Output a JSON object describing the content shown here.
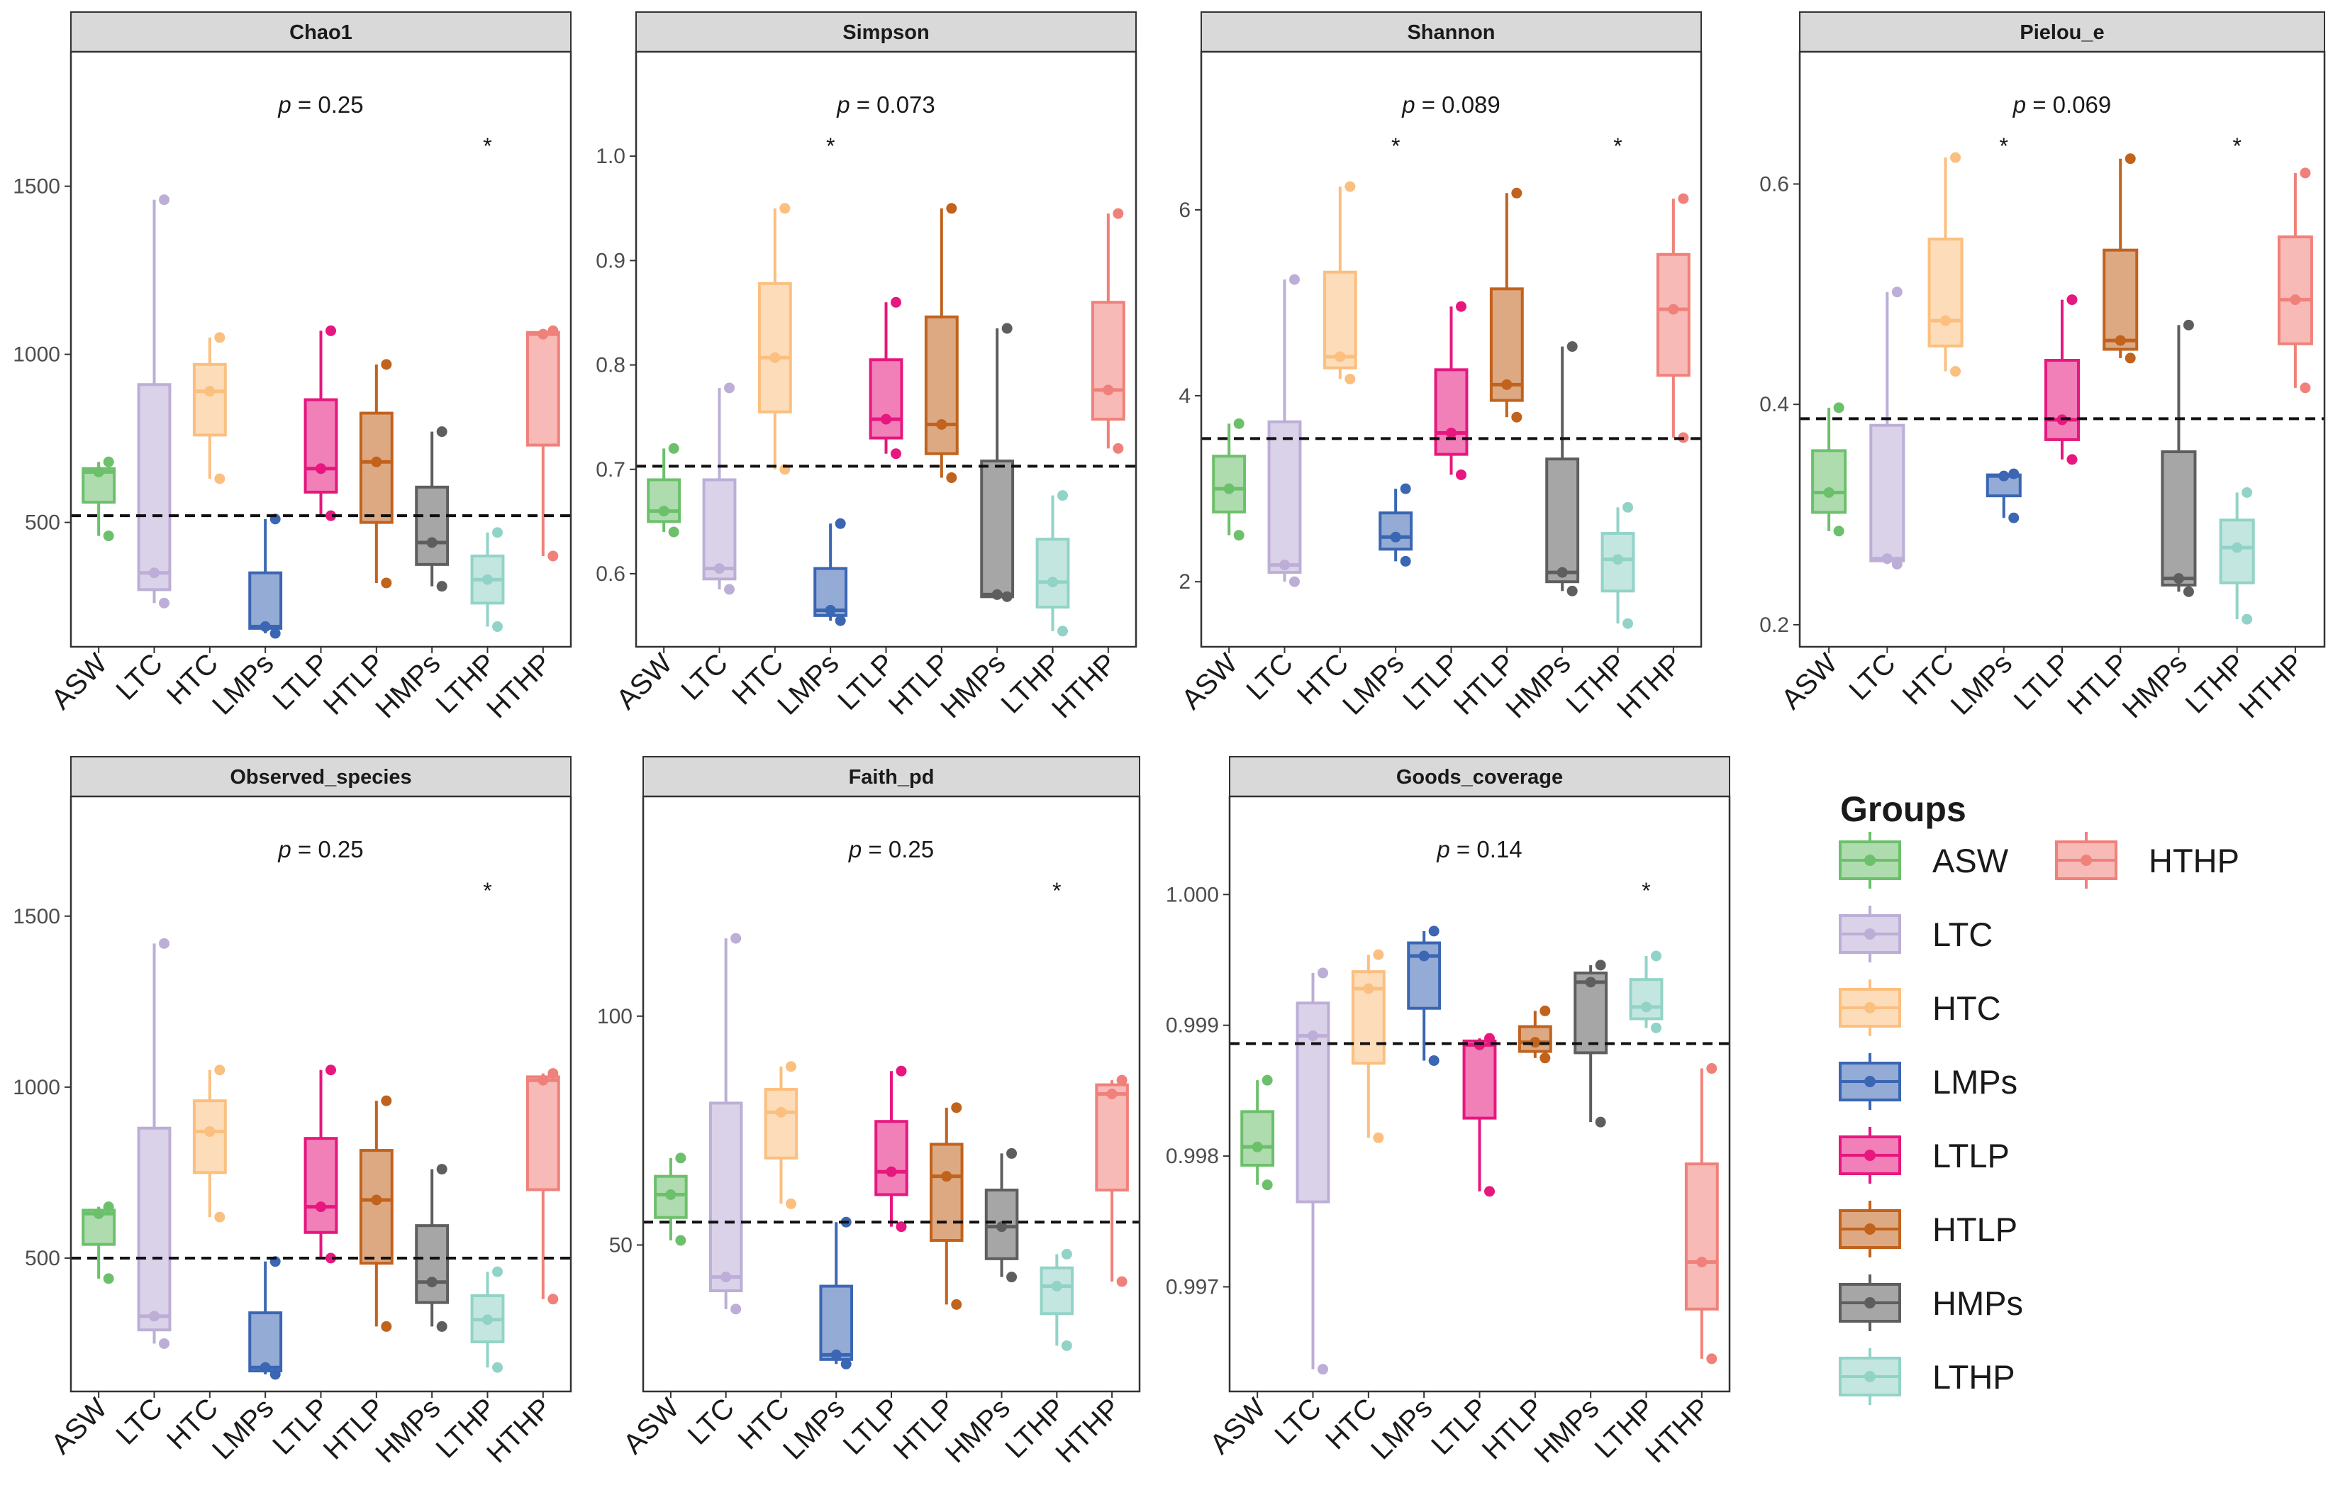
{
  "legend": {
    "title": "Groups",
    "items": [
      {
        "name": "ASW",
        "color": "#6cc06b"
      },
      {
        "name": "LTC",
        "color": "#bcaed6"
      },
      {
        "name": "HTC",
        "color": "#fbbf7f"
      },
      {
        "name": "LMPs",
        "color": "#3a66b3"
      },
      {
        "name": "LTLP",
        "color": "#e6177e"
      },
      {
        "name": "HTLP",
        "color": "#c1621d"
      },
      {
        "name": "HMPs",
        "color": "#5e5e5e"
      },
      {
        "name": "LTHP",
        "color": "#92d3c7"
      },
      {
        "name": "HTHP",
        "color": "#f0817a"
      }
    ]
  },
  "chart_data": [
    {
      "type": "boxplot",
      "title": "Chao1",
      "p_prefix": "p",
      "p_value": "= 0.25",
      "ylim": [
        130,
        1900
      ],
      "yticks": [
        500,
        1000,
        1500
      ],
      "ytick_labels": [
        "500",
        "1000",
        "1500"
      ],
      "mean_line": 520,
      "significance": [
        "LTHP"
      ],
      "categories": [
        "ASW",
        "LTC",
        "HTC",
        "LMPs",
        "LTLP",
        "HTLP",
        "HMPs",
        "LTHP",
        "HTHP"
      ],
      "boxes": [
        {
          "min": 460,
          "q1": 560,
          "median": 650,
          "q3": 660,
          "max": 680,
          "points": [
            680,
            650,
            460
          ]
        },
        {
          "min": 260,
          "q1": 300,
          "median": 350,
          "q3": 910,
          "max": 1460,
          "points": [
            1460,
            350,
            260
          ]
        },
        {
          "min": 630,
          "q1": 760,
          "median": 890,
          "q3": 970,
          "max": 1050,
          "points": [
            1050,
            890,
            630
          ]
        },
        {
          "min": 170,
          "q1": 185,
          "median": 190,
          "q3": 350,
          "max": 510,
          "points": [
            510,
            190,
            170
          ]
        },
        {
          "min": 520,
          "q1": 590,
          "median": 660,
          "q3": 865,
          "max": 1070,
          "points": [
            1070,
            660,
            520
          ]
        },
        {
          "min": 320,
          "q1": 500,
          "median": 680,
          "q3": 825,
          "max": 970,
          "points": [
            970,
            680,
            320
          ]
        },
        {
          "min": 310,
          "q1": 375,
          "median": 440,
          "q3": 605,
          "max": 770,
          "points": [
            770,
            440,
            310
          ]
        },
        {
          "min": 190,
          "q1": 260,
          "median": 330,
          "q3": 400,
          "max": 470,
          "points": [
            470,
            330,
            190
          ]
        },
        {
          "min": 400,
          "q1": 730,
          "median": 1060,
          "q3": 1065,
          "max": 1070,
          "points": [
            1070,
            1060,
            400
          ]
        }
      ]
    },
    {
      "type": "boxplot",
      "title": "Simpson",
      "p_prefix": "p",
      "p_value": "= 0.073",
      "ylim": [
        0.53,
        1.1
      ],
      "yticks": [
        0.6,
        0.7,
        0.8,
        0.9,
        1.0
      ],
      "ytick_labels": [
        "0.6",
        "0.7",
        "0.8",
        "0.9",
        "1.0"
      ],
      "mean_line": 0.703,
      "significance": [
        "LMPs"
      ],
      "categories": [
        "ASW",
        "LTC",
        "HTC",
        "LMPs",
        "LTLP",
        "HTLP",
        "HMPs",
        "LTHP",
        "HTHP"
      ],
      "boxes": [
        {
          "min": 0.64,
          "q1": 0.65,
          "median": 0.66,
          "q3": 0.69,
          "max": 0.72,
          "points": [
            0.72,
            0.66,
            0.64
          ]
        },
        {
          "min": 0.585,
          "q1": 0.595,
          "median": 0.605,
          "q3": 0.69,
          "max": 0.778,
          "points": [
            0.778,
            0.605,
            0.585
          ]
        },
        {
          "min": 0.7,
          "q1": 0.755,
          "median": 0.807,
          "q3": 0.878,
          "max": 0.95,
          "points": [
            0.95,
            0.807,
            0.7
          ]
        },
        {
          "min": 0.555,
          "q1": 0.56,
          "median": 0.565,
          "q3": 0.605,
          "max": 0.648,
          "points": [
            0.648,
            0.565,
            0.555
          ]
        },
        {
          "min": 0.715,
          "q1": 0.73,
          "median": 0.748,
          "q3": 0.805,
          "max": 0.86,
          "points": [
            0.86,
            0.748,
            0.715
          ]
        },
        {
          "min": 0.692,
          "q1": 0.715,
          "median": 0.743,
          "q3": 0.846,
          "max": 0.95,
          "points": [
            0.95,
            0.743,
            0.692
          ]
        },
        {
          "min": 0.578,
          "q1": 0.578,
          "median": 0.58,
          "q3": 0.708,
          "max": 0.835,
          "points": [
            0.835,
            0.58,
            0.578
          ]
        },
        {
          "min": 0.545,
          "q1": 0.568,
          "median": 0.592,
          "q3": 0.633,
          "max": 0.675,
          "points": [
            0.675,
            0.592,
            0.545
          ]
        },
        {
          "min": 0.72,
          "q1": 0.748,
          "median": 0.776,
          "q3": 0.86,
          "max": 0.945,
          "points": [
            0.945,
            0.776,
            0.72
          ]
        }
      ]
    },
    {
      "type": "boxplot",
      "title": "Shannon",
      "p_prefix": "p",
      "p_value": "= 0.089",
      "ylim": [
        1.3,
        7.7
      ],
      "yticks": [
        2,
        4,
        6
      ],
      "ytick_labels": [
        "2",
        "4",
        "6"
      ],
      "mean_line": 3.54,
      "significance": [
        "LMPs",
        "LTHP"
      ],
      "categories": [
        "ASW",
        "LTC",
        "HTC",
        "LMPs",
        "LTLP",
        "HTLP",
        "HMPs",
        "LTHP",
        "HTHP"
      ],
      "boxes": [
        {
          "min": 2.5,
          "q1": 2.75,
          "median": 3.0,
          "q3": 3.35,
          "max": 3.7,
          "points": [
            3.7,
            3.0,
            2.5
          ]
        },
        {
          "min": 2.0,
          "q1": 2.1,
          "median": 2.18,
          "q3": 3.72,
          "max": 5.25,
          "points": [
            5.25,
            2.18,
            2.0
          ]
        },
        {
          "min": 4.18,
          "q1": 4.3,
          "median": 4.42,
          "q3": 5.33,
          "max": 6.25,
          "points": [
            6.25,
            4.42,
            4.18
          ]
        },
        {
          "min": 2.22,
          "q1": 2.35,
          "median": 2.48,
          "q3": 2.74,
          "max": 3.0,
          "points": [
            3.0,
            2.48,
            2.22
          ]
        },
        {
          "min": 3.15,
          "q1": 3.37,
          "median": 3.6,
          "q3": 4.28,
          "max": 4.96,
          "points": [
            4.96,
            3.6,
            3.15
          ]
        },
        {
          "min": 3.77,
          "q1": 3.95,
          "median": 4.12,
          "q3": 5.15,
          "max": 6.18,
          "points": [
            6.18,
            4.12,
            3.77
          ]
        },
        {
          "min": 1.9,
          "q1": 2.0,
          "median": 2.1,
          "q3": 3.32,
          "max": 4.53,
          "points": [
            4.53,
            2.1,
            1.9
          ]
        },
        {
          "min": 1.55,
          "q1": 1.9,
          "median": 2.24,
          "q3": 2.52,
          "max": 2.8,
          "points": [
            2.8,
            2.24,
            1.55
          ]
        },
        {
          "min": 3.55,
          "q1": 4.22,
          "median": 4.93,
          "q3": 5.52,
          "max": 6.12,
          "points": [
            6.12,
            4.93,
            3.55
          ]
        }
      ]
    },
    {
      "type": "boxplot",
      "title": "Pielou_e",
      "p_prefix": "p",
      "p_value": "= 0.069",
      "ylim": [
        0.18,
        0.72
      ],
      "yticks": [
        0.2,
        0.4,
        0.6
      ],
      "ytick_labels": [
        "0.2",
        "0.4",
        "0.6"
      ],
      "mean_line": 0.387,
      "significance": [
        "LMPs",
        "LTHP"
      ],
      "categories": [
        "ASW",
        "LTC",
        "HTC",
        "LMPs",
        "LTLP",
        "HTLP",
        "HMPs",
        "LTHP",
        "HTHP"
      ],
      "boxes": [
        {
          "min": 0.285,
          "q1": 0.302,
          "median": 0.32,
          "q3": 0.358,
          "max": 0.397,
          "points": [
            0.397,
            0.32,
            0.285
          ]
        },
        {
          "min": 0.255,
          "q1": 0.258,
          "median": 0.26,
          "q3": 0.381,
          "max": 0.502,
          "points": [
            0.502,
            0.26,
            0.255
          ]
        },
        {
          "min": 0.43,
          "q1": 0.453,
          "median": 0.476,
          "q3": 0.55,
          "max": 0.624,
          "points": [
            0.624,
            0.476,
            0.43
          ]
        },
        {
          "min": 0.297,
          "q1": 0.317,
          "median": 0.335,
          "q3": 0.336,
          "max": 0.337,
          "points": [
            0.337,
            0.335,
            0.297
          ]
        },
        {
          "min": 0.35,
          "q1": 0.368,
          "median": 0.386,
          "q3": 0.44,
          "max": 0.495,
          "points": [
            0.495,
            0.386,
            0.35
          ]
        },
        {
          "min": 0.442,
          "q1": 0.45,
          "median": 0.458,
          "q3": 0.54,
          "max": 0.623,
          "points": [
            0.623,
            0.458,
            0.442
          ]
        },
        {
          "min": 0.23,
          "q1": 0.236,
          "median": 0.242,
          "q3": 0.357,
          "max": 0.472,
          "points": [
            0.472,
            0.242,
            0.23
          ]
        },
        {
          "min": 0.205,
          "q1": 0.238,
          "median": 0.27,
          "q3": 0.295,
          "max": 0.32,
          "points": [
            0.32,
            0.27,
            0.205
          ]
        },
        {
          "min": 0.415,
          "q1": 0.455,
          "median": 0.495,
          "q3": 0.552,
          "max": 0.61,
          "points": [
            0.61,
            0.495,
            0.415
          ]
        }
      ]
    },
    {
      "type": "boxplot",
      "title": "Observed_species",
      "p_prefix": "p",
      "p_value": "= 0.25",
      "ylim": [
        110,
        1850
      ],
      "yticks": [
        500,
        1000,
        1500
      ],
      "ytick_labels": [
        "500",
        "1000",
        "1500"
      ],
      "mean_line": 500,
      "significance": [
        "LTHP"
      ],
      "categories": [
        "ASW",
        "LTC",
        "HTC",
        "LMPs",
        "LTLP",
        "HTLP",
        "HMPs",
        "LTHP",
        "HTHP"
      ],
      "boxes": [
        {
          "min": 440,
          "q1": 540,
          "median": 630,
          "q3": 640,
          "max": 650,
          "points": [
            650,
            630,
            440
          ]
        },
        {
          "min": 250,
          "q1": 290,
          "median": 330,
          "q3": 880,
          "max": 1420,
          "points": [
            1420,
            330,
            250
          ]
        },
        {
          "min": 620,
          "q1": 750,
          "median": 870,
          "q3": 960,
          "max": 1050,
          "points": [
            1050,
            870,
            620
          ]
        },
        {
          "min": 160,
          "q1": 170,
          "median": 180,
          "q3": 340,
          "max": 490,
          "points": [
            490,
            180,
            160
          ]
        },
        {
          "min": 500,
          "q1": 575,
          "median": 650,
          "q3": 850,
          "max": 1050,
          "points": [
            1050,
            650,
            500
          ]
        },
        {
          "min": 300,
          "q1": 485,
          "median": 670,
          "q3": 815,
          "max": 960,
          "points": [
            960,
            670,
            300
          ]
        },
        {
          "min": 300,
          "q1": 370,
          "median": 430,
          "q3": 595,
          "max": 760,
          "points": [
            760,
            430,
            300
          ]
        },
        {
          "min": 180,
          "q1": 255,
          "median": 320,
          "q3": 390,
          "max": 460,
          "points": [
            460,
            320,
            180
          ]
        },
        {
          "min": 380,
          "q1": 700,
          "median": 1020,
          "q3": 1030,
          "max": 1040,
          "points": [
            1040,
            1020,
            380
          ]
        }
      ]
    },
    {
      "type": "boxplot",
      "title": "Faith_pd",
      "p_prefix": "p",
      "p_value": "= 0.25",
      "ylim": [
        18,
        148
      ],
      "yticks": [
        50,
        100
      ],
      "ytick_labels": [
        "50",
        "100"
      ],
      "mean_line": 55,
      "significance": [
        "LTHP"
      ],
      "categories": [
        "ASW",
        "LTC",
        "HTC",
        "LMPs",
        "LTLP",
        "HTLP",
        "HMPs",
        "LTHP",
        "HTHP"
      ],
      "boxes": [
        {
          "min": 51,
          "q1": 56,
          "median": 61,
          "q3": 65,
          "max": 69,
          "points": [
            69,
            61,
            51
          ]
        },
        {
          "min": 36,
          "q1": 40,
          "median": 43,
          "q3": 81,
          "max": 117,
          "points": [
            117,
            43,
            36
          ]
        },
        {
          "min": 59,
          "q1": 69,
          "median": 79,
          "q3": 84,
          "max": 89,
          "points": [
            89,
            79,
            59
          ]
        },
        {
          "min": 24,
          "q1": 25,
          "median": 26,
          "q3": 41,
          "max": 55,
          "points": [
            55,
            26,
            24
          ]
        },
        {
          "min": 54,
          "q1": 61,
          "median": 66,
          "q3": 77,
          "max": 88,
          "points": [
            88,
            66,
            54
          ]
        },
        {
          "min": 37,
          "q1": 51,
          "median": 65,
          "q3": 72,
          "max": 80,
          "points": [
            80,
            65,
            37
          ]
        },
        {
          "min": 43,
          "q1": 47,
          "median": 54,
          "q3": 62,
          "max": 70,
          "points": [
            70,
            54,
            43
          ]
        },
        {
          "min": 28,
          "q1": 35,
          "median": 41,
          "q3": 45,
          "max": 48,
          "points": [
            48,
            41,
            28
          ]
        },
        {
          "min": 42,
          "q1": 62,
          "median": 83,
          "q3": 85,
          "max": 86,
          "points": [
            86,
            83,
            42
          ]
        }
      ]
    },
    {
      "type": "boxplot",
      "title": "Goods_coverage",
      "p_prefix": "p",
      "p_value": "= 0.14",
      "ylim": [
        0.9962,
        1.00075
      ],
      "yticks": [
        0.997,
        0.998,
        0.999,
        1.0
      ],
      "ytick_labels": [
        "0.997",
        "0.998",
        "0.999",
        "1.000"
      ],
      "mean_line": 0.99886,
      "significance": [
        "LTHP"
      ],
      "categories": [
        "ASW",
        "LTC",
        "HTC",
        "LMPs",
        "LTLP",
        "HTLP",
        "HMPs",
        "LTHP",
        "HTHP"
      ],
      "boxes": [
        {
          "min": 0.99778,
          "q1": 0.99793,
          "median": 0.99807,
          "q3": 0.99834,
          "max": 0.99858,
          "points": [
            0.99858,
            0.99807,
            0.99778
          ]
        },
        {
          "min": 0.99637,
          "q1": 0.99765,
          "median": 0.99892,
          "q3": 0.99917,
          "max": 0.9994,
          "points": [
            0.9994,
            0.99892,
            0.99637
          ]
        },
        {
          "min": 0.99814,
          "q1": 0.99871,
          "median": 0.99928,
          "q3": 0.99941,
          "max": 0.99954,
          "points": [
            0.99954,
            0.99928,
            0.99814
          ]
        },
        {
          "min": 0.99873,
          "q1": 0.99913,
          "median": 0.99953,
          "q3": 0.99963,
          "max": 0.99972,
          "points": [
            0.99972,
            0.99953,
            0.99873
          ]
        },
        {
          "min": 0.99773,
          "q1": 0.99829,
          "median": 0.99885,
          "q3": 0.99888,
          "max": 0.9989,
          "points": [
            0.9989,
            0.99885,
            0.99773
          ]
        },
        {
          "min": 0.99875,
          "q1": 0.9988,
          "median": 0.99887,
          "q3": 0.99899,
          "max": 0.99911,
          "points": [
            0.99911,
            0.99887,
            0.99875
          ]
        },
        {
          "min": 0.99826,
          "q1": 0.99879,
          "median": 0.99933,
          "q3": 0.9994,
          "max": 0.99946,
          "points": [
            0.99946,
            0.99933,
            0.99826
          ]
        },
        {
          "min": 0.99898,
          "q1": 0.99905,
          "median": 0.99914,
          "q3": 0.99935,
          "max": 0.99953,
          "points": [
            0.99953,
            0.99914,
            0.99898
          ]
        },
        {
          "min": 0.99645,
          "q1": 0.99683,
          "median": 0.99719,
          "q3": 0.99794,
          "max": 0.99867,
          "points": [
            0.99867,
            0.99719,
            0.99645
          ]
        }
      ]
    }
  ]
}
